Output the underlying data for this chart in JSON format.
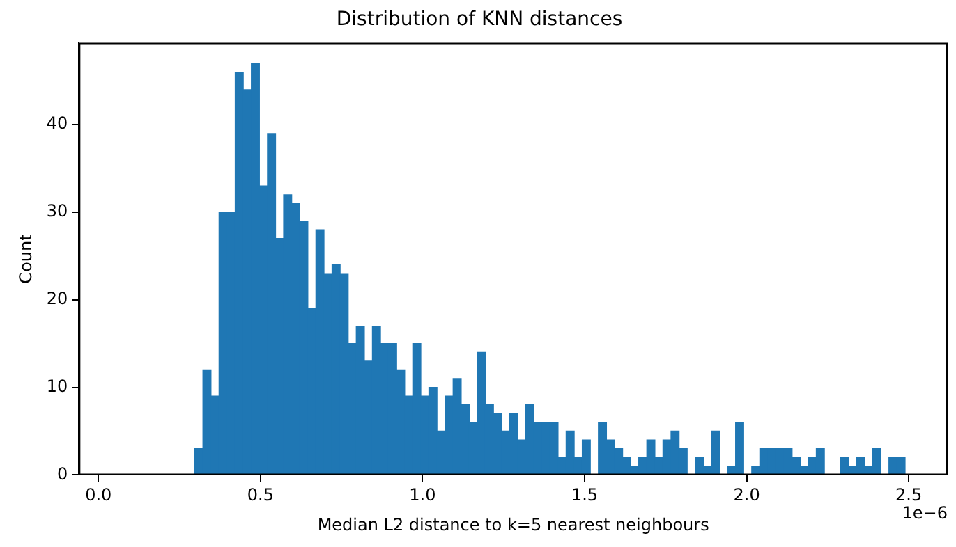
{
  "chart_data": {
    "type": "histogram",
    "title": "Distribution of KNN distances",
    "xlabel": "Median L2 distance to k=5 nearest neighbours",
    "ylabel": "Count",
    "annotations": [
      "1e−6"
    ],
    "color": "#1f77b4",
    "bins": [
      0.2975,
      0.3224,
      0.3473,
      0.3722,
      0.3971,
      0.422,
      0.4469,
      0.4718,
      0.4967,
      0.5216,
      0.5465,
      0.5714,
      0.5963,
      0.6212,
      0.6461,
      0.671,
      0.6959,
      0.7208,
      0.7457,
      0.7706,
      0.7955,
      0.8204,
      0.8453,
      0.8702,
      0.8951,
      0.92,
      0.9449,
      0.9698,
      0.9947,
      1.0196,
      1.0445,
      1.0694,
      1.0943,
      1.1192,
      1.1441,
      1.169,
      1.1939,
      1.2188,
      1.2437,
      1.2686,
      1.2935,
      1.3184,
      1.3433,
      1.3682,
      1.3931,
      1.418,
      1.4429,
      1.4678,
      1.4927,
      1.5176,
      1.5425,
      1.5674,
      1.5923,
      1.6172,
      1.6421,
      1.667,
      1.6919,
      1.7168,
      1.7417,
      1.7666,
      1.7915,
      1.8164,
      1.8413,
      1.8662,
      1.8911,
      1.916,
      1.9409,
      1.9658,
      1.9907,
      2.0156,
      2.0405,
      2.0654,
      2.0903,
      2.1152,
      2.1401,
      2.165,
      2.1899,
      2.2148,
      2.2397,
      2.2646,
      2.2895,
      2.3144,
      2.3393,
      2.3642,
      2.3891,
      2.414,
      2.4389,
      2.4638,
      2.4887
    ],
    "values": [
      3,
      12,
      9,
      30,
      30,
      46,
      44,
      47,
      33,
      39,
      27,
      32,
      31,
      29,
      19,
      28,
      23,
      24,
      23,
      15,
      17,
      13,
      17,
      15,
      15,
      12,
      9,
      15,
      9,
      10,
      5,
      9,
      11,
      8,
      6,
      14,
      8,
      7,
      5,
      7,
      4,
      8,
      6,
      6,
      6,
      2,
      5,
      2,
      4,
      0,
      6,
      4,
      3,
      2,
      1,
      2,
      4,
      2,
      4,
      5,
      3,
      0,
      2,
      1,
      5,
      0,
      1,
      6,
      0,
      1,
      3,
      3,
      3,
      3,
      2,
      1,
      2,
      3,
      0,
      0,
      2,
      1,
      2,
      1,
      3,
      0,
      2,
      2
    ],
    "xlim": [
      -0.06,
      2.62
    ],
    "ylim": [
      0,
      49.35
    ],
    "xticks": [
      {
        "value": 0,
        "label": "0.0"
      },
      {
        "value": 0.5,
        "label": "0.5"
      },
      {
        "value": 1,
        "label": "1.0"
      },
      {
        "value": 1.5,
        "label": "1.5"
      },
      {
        "value": 2,
        "label": "2.0"
      },
      {
        "value": 2.5,
        "label": "2.5"
      }
    ],
    "yticks": [
      0,
      10,
      20,
      30,
      40
    ],
    "grid": false,
    "legend": false
  }
}
